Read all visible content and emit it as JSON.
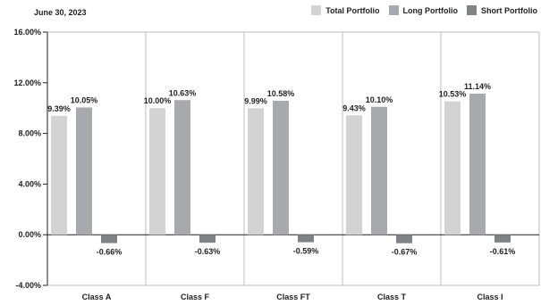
{
  "title": "June 30, 2023",
  "colors": {
    "total": "#d3d3d3",
    "long": "#a7a9ac",
    "short": "#808285",
    "grid": "#bcbec0",
    "axis": "#231f20"
  },
  "chart_data": {
    "type": "bar",
    "title": "June 30, 2023",
    "categories": [
      "Class A",
      "Class F",
      "Class FT",
      "Class T",
      "Class I"
    ],
    "series": [
      {
        "name": "Total Portfolio",
        "values": [
          9.39,
          10.0,
          9.99,
          9.43,
          10.53
        ],
        "labels": [
          "9.39%",
          "10.00%",
          "9.99%",
          "9.43%",
          "10.53%"
        ]
      },
      {
        "name": "Long Portfolio",
        "values": [
          10.05,
          10.63,
          10.58,
          10.1,
          11.14
        ],
        "labels": [
          "10.05%",
          "10.63%",
          "10.58%",
          "10.10%",
          "11.14%"
        ]
      },
      {
        "name": "Short Portfolio",
        "values": [
          -0.66,
          -0.63,
          -0.59,
          -0.67,
          -0.61
        ],
        "labels": [
          "-0.66%",
          "-0.63%",
          "-0.59%",
          "-0.67%",
          "-0.61%"
        ]
      }
    ],
    "ylim": [
      -4,
      16
    ],
    "yticks": [
      -4,
      0,
      4,
      8,
      12,
      16
    ],
    "ytick_labels": [
      "-4.00%",
      "0.00%",
      "4.00%",
      "8.00%",
      "12.00%",
      "16.00%"
    ],
    "legend_position": "top-right",
    "grid": "vertical category separators"
  }
}
